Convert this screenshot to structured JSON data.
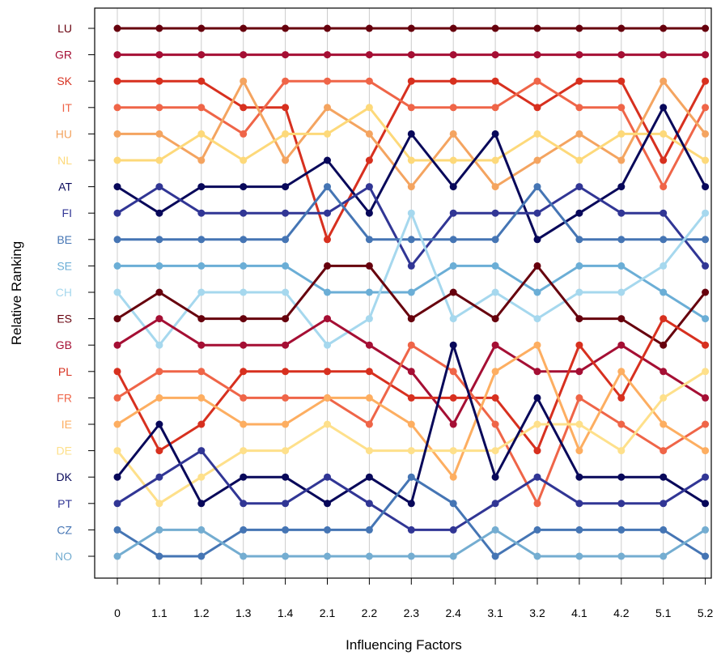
{
  "chart_data": {
    "type": "line",
    "xlabel": "Influencing Factors",
    "ylabel": "Relative Ranking",
    "categories": [
      "0",
      "1.1",
      "1.2",
      "1.3",
      "1.4",
      "2.1",
      "2.2",
      "2.3",
      "2.4",
      "3.1",
      "3.2",
      "4.1",
      "4.2",
      "5.1",
      "5.2"
    ],
    "y_tick_labels": [
      "LU",
      "GR",
      "SK",
      "IT",
      "HU",
      "NL",
      "AT",
      "FI",
      "BE",
      "SE",
      "CH",
      "ES",
      "GB",
      "PL",
      "FR",
      "IE",
      "DE",
      "DK",
      "PT",
      "CZ",
      "NO"
    ],
    "y_tick_colors": [
      "#67000d",
      "#a50f34",
      "#d7301f",
      "#ef6548",
      "#f4a460",
      "#fdd97a",
      "#08085a",
      "#313695",
      "#4575b4",
      "#6baed6",
      "#a6d8ee",
      "#67000d",
      "#a50f34",
      "#d7301f",
      "#ef6548",
      "#fdae61",
      "#fee08b",
      "#08085a",
      "#313695",
      "#4575b4",
      "#74add1"
    ],
    "ylim": [
      1,
      21
    ],
    "grid": "vertical",
    "series": [
      {
        "name": "LU",
        "color": "#67000d",
        "values": [
          1,
          1,
          1,
          1,
          1,
          1,
          1,
          1,
          1,
          1,
          1,
          1,
          1,
          1,
          1
        ]
      },
      {
        "name": "GR",
        "color": "#a50f34",
        "values": [
          2,
          2,
          2,
          2,
          2,
          2,
          2,
          2,
          2,
          2,
          2,
          2,
          2,
          2,
          2
        ]
      },
      {
        "name": "SK",
        "color": "#d7301f",
        "values": [
          3,
          3,
          3,
          4,
          4,
          9,
          6,
          3,
          3,
          3,
          4,
          3,
          3,
          6,
          3
        ]
      },
      {
        "name": "IT",
        "color": "#ef6548",
        "values": [
          4,
          4,
          4,
          5,
          3,
          3,
          3,
          4,
          4,
          4,
          3,
          4,
          4,
          7,
          4
        ]
      },
      {
        "name": "HU",
        "color": "#f4a460",
        "values": [
          5,
          5,
          6,
          3,
          6,
          4,
          5,
          7,
          5,
          7,
          6,
          5,
          6,
          3,
          5
        ]
      },
      {
        "name": "NL",
        "color": "#fdd97a",
        "values": [
          6,
          6,
          5,
          6,
          5,
          5,
          4,
          6,
          6,
          6,
          5,
          6,
          5,
          5,
          6
        ]
      },
      {
        "name": "AT",
        "color": "#08085a",
        "values": [
          7,
          8,
          7,
          7,
          7,
          6,
          8,
          5,
          7,
          5,
          9,
          8,
          7,
          4,
          7
        ]
      },
      {
        "name": "FI",
        "color": "#313695",
        "values": [
          8,
          7,
          8,
          8,
          8,
          8,
          7,
          10,
          8,
          8,
          8,
          7,
          8,
          8,
          10
        ]
      },
      {
        "name": "BE",
        "color": "#4575b4",
        "values": [
          9,
          9,
          9,
          9,
          9,
          7,
          9,
          9,
          9,
          9,
          7,
          9,
          9,
          9,
          9
        ]
      },
      {
        "name": "SE",
        "color": "#6baed6",
        "values": [
          10,
          10,
          10,
          10,
          10,
          11,
          11,
          11,
          10,
          10,
          11,
          10,
          10,
          11,
          12
        ]
      },
      {
        "name": "CH",
        "color": "#a6d8ee",
        "values": [
          11,
          13,
          11,
          11,
          11,
          13,
          12,
          8,
          12,
          11,
          12,
          11,
          11,
          10,
          8
        ]
      },
      {
        "name": "ES",
        "color": "#67000d",
        "values": [
          12,
          11,
          12,
          12,
          12,
          10,
          10,
          12,
          11,
          12,
          10,
          12,
          12,
          13,
          11
        ]
      },
      {
        "name": "GB",
        "color": "#a50f34",
        "values": [
          13,
          12,
          13,
          13,
          13,
          12,
          13,
          14,
          16,
          13,
          14,
          14,
          13,
          14,
          15
        ]
      },
      {
        "name": "PL",
        "color": "#d7301f",
        "values": [
          14,
          17,
          16,
          14,
          14,
          14,
          14,
          15,
          15,
          15,
          17,
          13,
          15,
          12,
          13
        ]
      },
      {
        "name": "FR",
        "color": "#ef6548",
        "values": [
          15,
          14,
          14,
          15,
          15,
          15,
          16,
          13,
          14,
          16,
          19,
          15,
          16,
          17,
          16
        ]
      },
      {
        "name": "IE",
        "color": "#fdae61",
        "values": [
          16,
          15,
          15,
          16,
          16,
          15,
          15,
          16,
          18,
          14,
          13,
          17,
          14,
          16,
          17
        ]
      },
      {
        "name": "DE",
        "color": "#fee08b",
        "values": [
          17,
          19,
          18,
          17,
          17,
          16,
          17,
          17,
          17,
          17,
          16,
          16,
          17,
          15,
          14
        ]
      },
      {
        "name": "DK",
        "color": "#08085a",
        "values": [
          18,
          16,
          19,
          18,
          18,
          19,
          18,
          19,
          13,
          18,
          15,
          18,
          18,
          18,
          19
        ]
      },
      {
        "name": "PT",
        "color": "#313695",
        "values": [
          19,
          18,
          17,
          19,
          19,
          18,
          19,
          20,
          20,
          19,
          18,
          19,
          19,
          19,
          18
        ]
      },
      {
        "name": "CZ",
        "color": "#4575b4",
        "values": [
          20,
          21,
          21,
          20,
          20,
          20,
          20,
          18,
          19,
          21,
          20,
          20,
          20,
          20,
          21
        ]
      },
      {
        "name": "NO",
        "color": "#74add1",
        "values": [
          21,
          20,
          20,
          21,
          21,
          21,
          21,
          21,
          21,
          20,
          21,
          21,
          21,
          21,
          20
        ]
      }
    ]
  }
}
